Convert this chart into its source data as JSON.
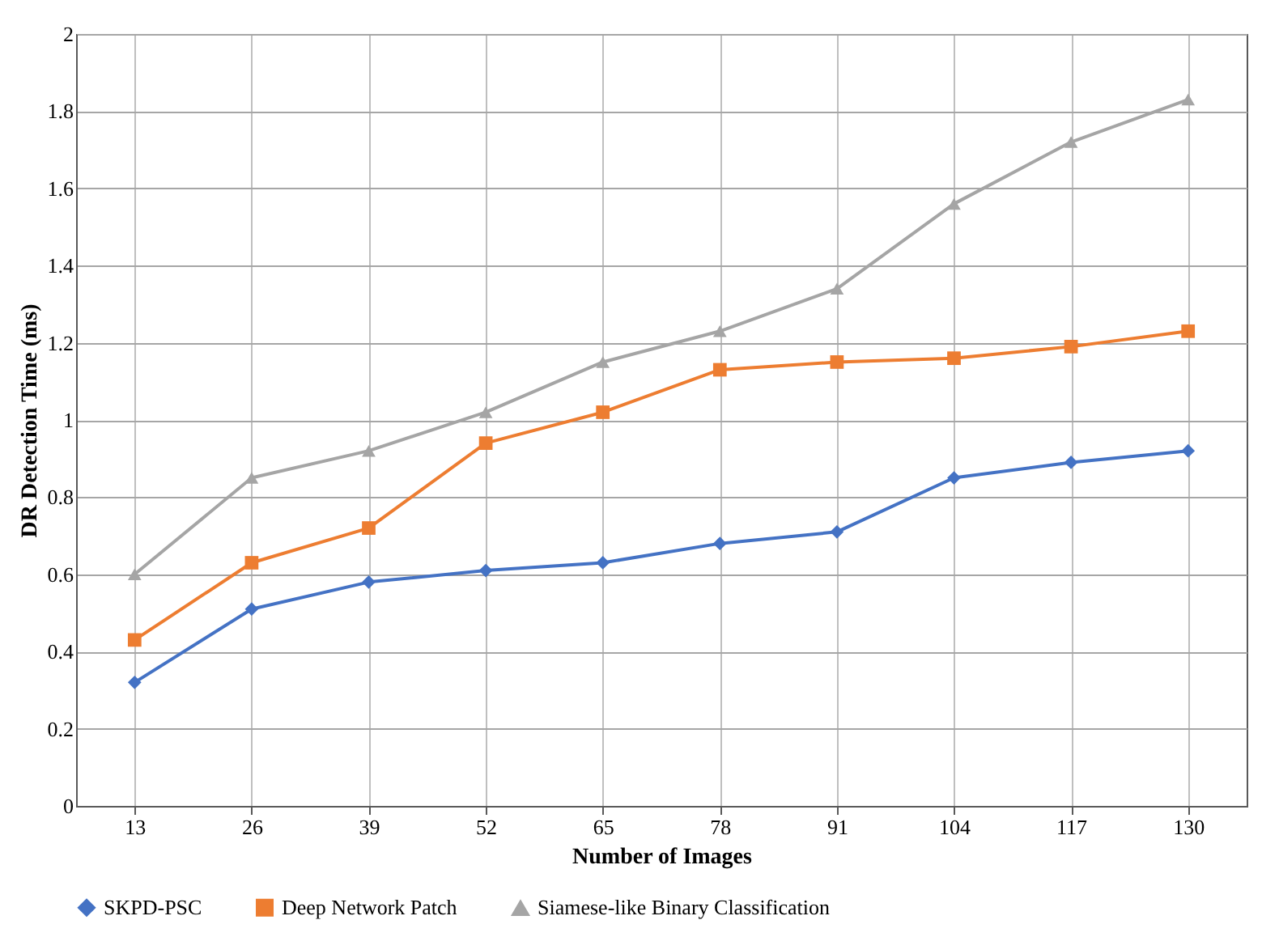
{
  "chart_data": {
    "type": "line",
    "xlabel": "Number of Images",
    "ylabel": "DR Detection Time (ms)",
    "categories": [
      "13",
      "26",
      "39",
      "52",
      "65",
      "78",
      "91",
      "104",
      "117",
      "130"
    ],
    "series": [
      {
        "name": "SKPD-PSC",
        "color": "#4472c4",
        "marker": "diamond",
        "values": [
          0.32,
          0.51,
          0.58,
          0.61,
          0.63,
          0.68,
          0.71,
          0.85,
          0.89,
          0.92
        ]
      },
      {
        "name": "Deep Network Patch",
        "color": "#ed7d31",
        "marker": "square",
        "values": [
          0.43,
          0.63,
          0.72,
          0.94,
          1.02,
          1.13,
          1.15,
          1.16,
          1.19,
          1.23
        ]
      },
      {
        "name": "Siamese-like Binary Classification",
        "color": "#a5a5a5",
        "marker": "triangle",
        "values": [
          0.6,
          0.85,
          0.92,
          1.02,
          1.15,
          1.23,
          1.34,
          1.56,
          1.72,
          1.83
        ]
      }
    ],
    "ylim": [
      0,
      2
    ],
    "yticks": [
      0,
      0.2,
      0.4,
      0.6,
      0.8,
      1,
      1.2,
      1.4,
      1.6,
      1.8,
      2
    ],
    "grid": true,
    "legend": "bottom",
    "line_style": "solid"
  }
}
